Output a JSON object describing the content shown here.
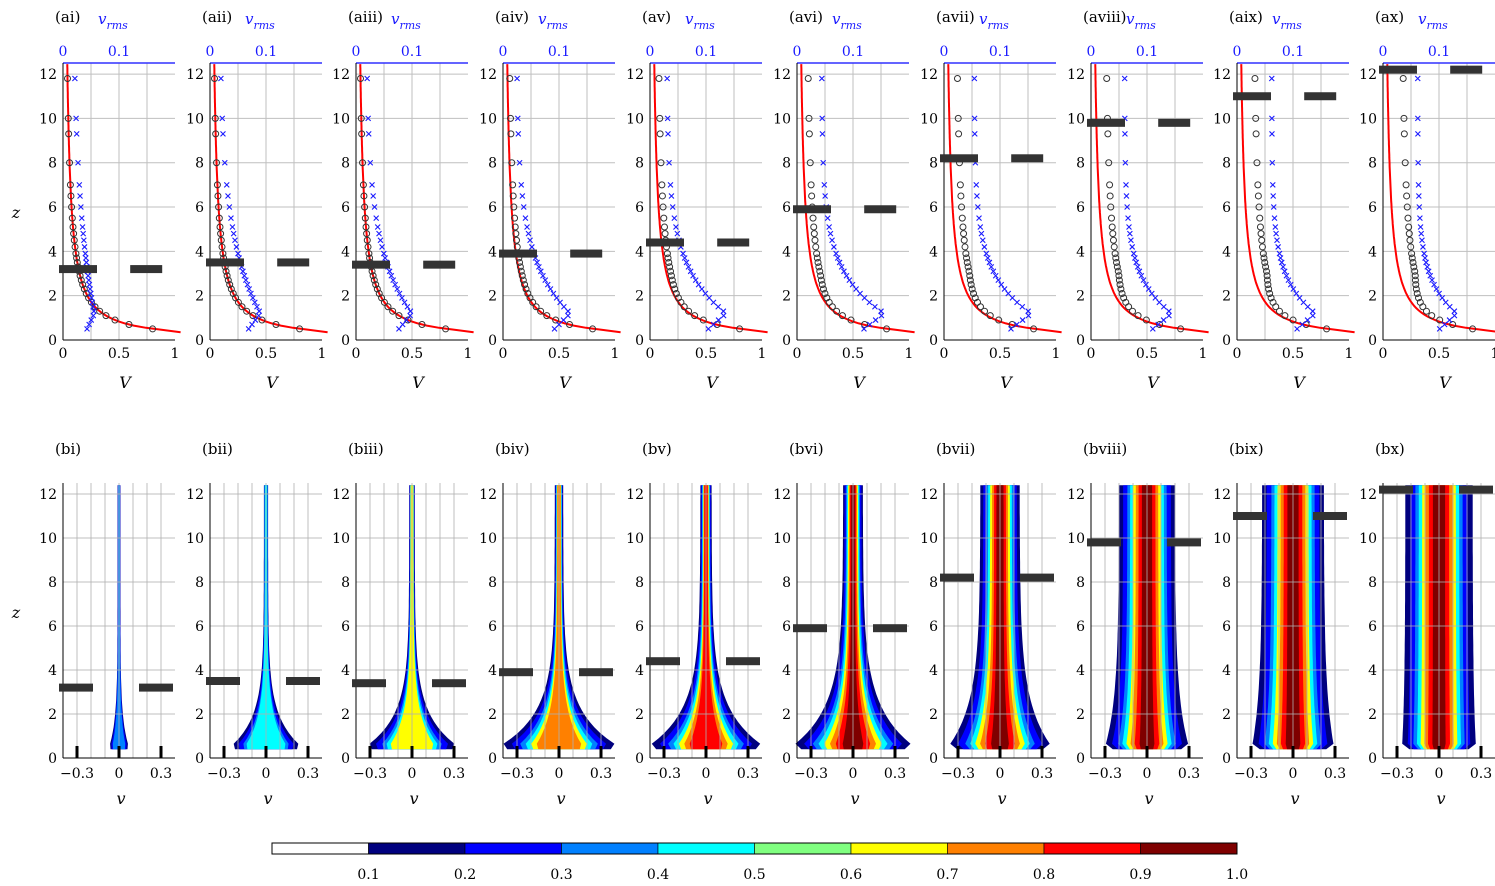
{
  "top_row": {
    "panels": [
      {
        "label": "(ai)",
        "mark_z": 3.2,
        "vrms_label": "v_rms"
      },
      {
        "label": "(aii)",
        "mark_z": 3.5,
        "vrms_label": "v_rms"
      },
      {
        "label": "(aiii)",
        "mark_z": 3.4,
        "vrms_label": "v_rms"
      },
      {
        "label": "(aiv)",
        "mark_z": 3.9,
        "vrms_label": "v_rms"
      },
      {
        "label": "(av)",
        "mark_z": 4.4,
        "vrms_label": "v_rms"
      },
      {
        "label": "(avi)",
        "mark_z": 5.9,
        "vrms_label": "v_rms"
      },
      {
        "label": "(avii)",
        "mark_z": 8.2,
        "vrms_label": "v_rms"
      },
      {
        "label": "(aviii)",
        "mark_z": 9.8,
        "vrms_label": "v_rms"
      },
      {
        "label": "(aix)",
        "mark_z": 11.0,
        "vrms_label": "v_rms"
      },
      {
        "label": "(ax)",
        "mark_z": 12.2,
        "vrms_label": "v_rms"
      }
    ],
    "x_ticks": [
      "0",
      "0.5",
      "1"
    ],
    "top_ticks": [
      "0",
      "0.1"
    ],
    "y_ticks": [
      "0",
      "2",
      "4",
      "6",
      "8",
      "10",
      "12"
    ],
    "xlabel": "V",
    "ylabel": "z"
  },
  "bottom_row": {
    "panels": [
      {
        "label": "(bi)",
        "mark_z": 3.2
      },
      {
        "label": "(bii)",
        "mark_z": 3.5
      },
      {
        "label": "(biii)",
        "mark_z": 3.4
      },
      {
        "label": "(biv)",
        "mark_z": 3.9
      },
      {
        "label": "(bv)",
        "mark_z": 4.4
      },
      {
        "label": "(bvi)",
        "mark_z": 5.9
      },
      {
        "label": "(bvii)",
        "mark_z": 8.2
      },
      {
        "label": "(bviii)",
        "mark_z": 9.8
      },
      {
        "label": "(bix)",
        "mark_z": 11.0
      },
      {
        "label": "(bx)",
        "mark_z": 12.2
      }
    ],
    "x_ticks": [
      "−0.3",
      "0",
      "0.3"
    ],
    "y_ticks": [
      "0",
      "2",
      "4",
      "6",
      "8",
      "10",
      "12"
    ],
    "xlabel": "v",
    "ylabel": "z"
  },
  "colorbar": {
    "ticks": [
      "0.1",
      "0.2",
      "0.3",
      "0.4",
      "0.5",
      "0.6",
      "0.7",
      "0.8",
      "0.9",
      "1.0"
    ],
    "colors": [
      "#ffffff",
      "#00007f",
      "#0000ff",
      "#0080ff",
      "#00ffff",
      "#80ff80",
      "#ffff00",
      "#ff8000",
      "#ff0000",
      "#7f0000"
    ]
  },
  "chart_data": {
    "type": "scatter",
    "description_of_axes": "Top row: horizontal velocity V vs height z; bottom row: distribution of v vs z",
    "top": {
      "xlim": [
        0,
        1
      ],
      "ylim": [
        0,
        12.5
      ],
      "top_xlim": [
        0,
        0.2
      ],
      "series_colors": {
        "mean": "#000000",
        "rms": "#1a1aff",
        "fit": "#ff0000"
      }
    },
    "bottom": {
      "xlim": [
        -0.4,
        0.4
      ],
      "ylim": [
        0,
        12.5
      ]
    }
  }
}
